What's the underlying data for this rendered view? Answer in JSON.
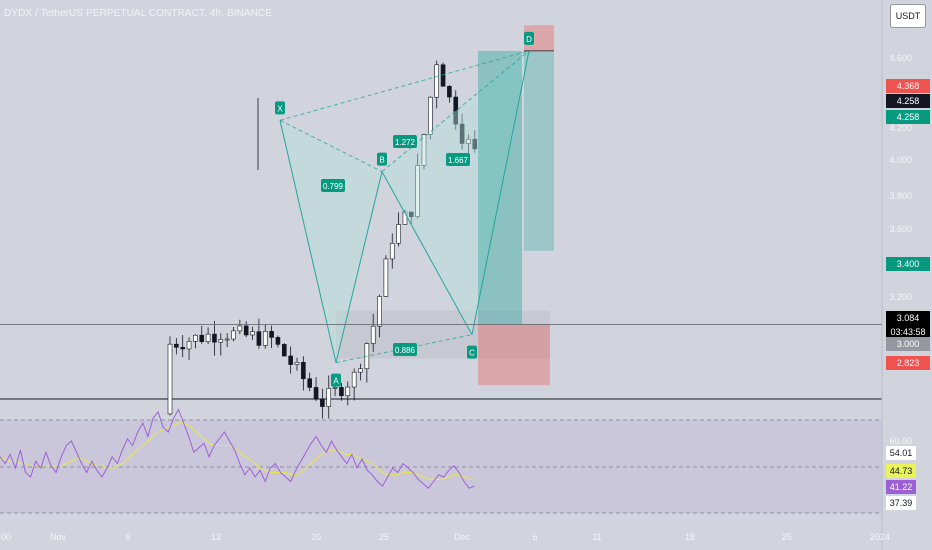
{
  "header": {
    "title": "DYDX / TetherUS PERPETUAL CONTRACT, 4h, BINANCE",
    "currency_button": "USDT"
  },
  "colors": {
    "background": "#d1d4dc",
    "candle_up": "#ffffff",
    "candle_down": "#131722",
    "pattern_line": "#26a69a",
    "pattern_fill": "#b2dfdb",
    "profit_zone": "#26a69a",
    "stop_zone": "#ef5350",
    "rsi_line": "#9c5fd6",
    "rsi_ma_line": "#e8e84a"
  },
  "chart_data": [
    {
      "type": "candlestick",
      "title": "DYDX / TetherUS PERPETUAL CONTRACT, 4h, BINANCE",
      "ylim": [
        2.62,
        4.78
      ],
      "y_ticks": [
        "4.600",
        "4.200",
        "4.000",
        "3.800",
        "3.600",
        "3.200"
      ],
      "x_ticks": [
        "Nov",
        "6",
        "13",
        "20",
        "25",
        "Dec",
        "6",
        "11",
        "18",
        "25",
        "2024"
      ],
      "x_ticks_partial": [
        "00"
      ],
      "price_tags": [
        {
          "label": "4.368",
          "value": 4.368,
          "color": "#ef5350"
        },
        {
          "label": "4.258",
          "value": 4.258,
          "color": "#131722"
        },
        {
          "label": "4.258",
          "value": 4.258,
          "color": "#089981"
        },
        {
          "label": "3.400",
          "value": 3.4,
          "color": "#089981"
        },
        {
          "label": "3.084",
          "value": 3.084,
          "color": "#000000",
          "countdown": "03:43:58"
        },
        {
          "label": "3.000",
          "value": 3.0,
          "color": "#9598a1"
        },
        {
          "label": "2.823",
          "value": 2.823,
          "color": "#ef5350"
        }
      ],
      "last_price": 3.084,
      "harmonic_pattern": {
        "points": [
          {
            "label": "X",
            "x": "Nov 17",
            "y": 3.96
          },
          {
            "label": "A",
            "x": "Nov 21",
            "y": 2.92
          },
          {
            "label": "B",
            "x": "Nov 24",
            "y": 3.74
          },
          {
            "label": "C",
            "x": "Dec 1",
            "y": 3.04
          },
          {
            "label": "D",
            "x": "Dec 5",
            "y": 4.258
          }
        ],
        "ratios": [
          {
            "label": "0.799",
            "between": [
              "X",
              "B"
            ]
          },
          {
            "label": "0.886",
            "between": [
              "A",
              "C"
            ]
          },
          {
            "label": "1.272",
            "between": [
              "X",
              "D"
            ]
          },
          {
            "label": "1.667",
            "between": [
              "B",
              "D"
            ]
          }
        ]
      },
      "positions": [
        {
          "kind": "long",
          "entry": 3.084,
          "target": 4.258,
          "stop": 2.823
        },
        {
          "kind": "short",
          "entry": 4.258,
          "target": 3.4,
          "stop": 4.368
        }
      ],
      "support_zone": [
        2.92,
        3.1
      ]
    },
    {
      "type": "line",
      "series": [
        {
          "values": [
            55,
            52,
            56,
            50,
            58,
            48,
            46,
            53,
            50,
            57,
            51,
            48,
            55,
            60,
            62,
            57,
            52,
            48,
            53,
            49,
            46,
            50,
            55,
            52,
            58,
            63,
            60,
            66,
            70,
            64,
            72,
            75,
            68,
            66,
            72,
            76,
            70,
            64,
            57,
            59,
            61,
            55,
            60,
            63,
            66,
            62,
            58,
            52,
            47,
            50,
            46,
            49,
            44,
            50,
            52,
            48,
            46,
            44,
            49,
            53,
            57,
            61,
            64,
            60,
            57,
            62,
            58,
            55,
            52,
            56,
            50,
            54,
            49,
            47,
            44,
            42,
            46,
            50,
            48,
            52,
            50,
            48,
            45,
            43,
            41,
            44,
            47,
            46,
            49,
            51,
            48,
            44,
            41,
            42
          ]
        },
        {
          "values": [
            54,
            54,
            53,
            53,
            52,
            52,
            51,
            51,
            51,
            51,
            51,
            51,
            51,
            52,
            53,
            54,
            54,
            53,
            52,
            51,
            51,
            50,
            50,
            51,
            52,
            54,
            56,
            58,
            60,
            62,
            64,
            66,
            67,
            68,
            69,
            70,
            70,
            69,
            67,
            65,
            63,
            61,
            60,
            60,
            60,
            60,
            59,
            57,
            55,
            54,
            52,
            50,
            49,
            48,
            48,
            48,
            48,
            47,
            47,
            48,
            50,
            52,
            54,
            56,
            57,
            58,
            58,
            57,
            56,
            56,
            55,
            54,
            53,
            52,
            50,
            48,
            47,
            47,
            47,
            48,
            48,
            48,
            47,
            46,
            45,
            45,
            45,
            45,
            46,
            47,
            47,
            46,
            45,
            45
          ]
        }
      ],
      "y_ticks": [
        "60.00"
      ],
      "value_tags": [
        {
          "label": "54.01",
          "color": "#ffffff"
        },
        {
          "label": "44.73",
          "color": "#eaf45a"
        },
        {
          "label": "41.22",
          "color": "#9c5fd6"
        },
        {
          "label": "37.39",
          "color": "#ffffff"
        }
      ]
    }
  ]
}
